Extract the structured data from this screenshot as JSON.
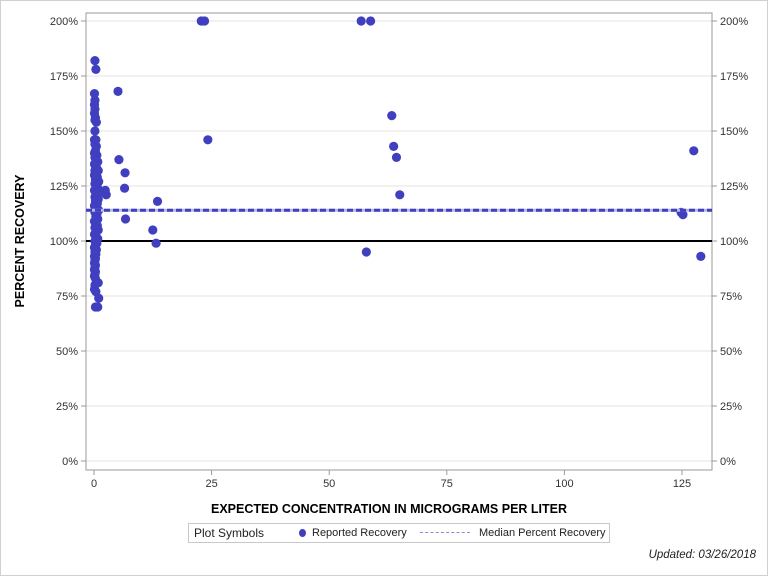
{
  "chart_data": {
    "type": "scatter",
    "title": "",
    "xlabel": "EXPECTED CONCENTRATION IN MICROGRAMS PER LITER",
    "ylabel": "PERCENT RECOVERY",
    "xlim": [
      -2,
      131
    ],
    "ylim": [
      -4,
      208
    ],
    "x_ticks": [
      0,
      25,
      50,
      75,
      100,
      125
    ],
    "x_tick_labels": [
      "0",
      "25",
      "50",
      "75",
      "100",
      "125"
    ],
    "y_ticks": [
      0,
      25,
      50,
      75,
      100,
      125,
      150,
      175,
      200
    ],
    "y_tick_labels": [
      "0%",
      "25%",
      "50%",
      "75%",
      "100%",
      "125%",
      "150%",
      "175%",
      "200%"
    ],
    "grid": "horizontal",
    "reference_line": {
      "y": 100,
      "color": "#000000",
      "style": "solid"
    },
    "median_line": {
      "y": 114,
      "color": "#3f3fc0",
      "style": "dashed",
      "name": "Median Percent Recovery"
    },
    "series": [
      {
        "name": "Reported Recovery",
        "color": "#3f3fc0",
        "points": [
          [
            0.2,
            182
          ],
          [
            0.4,
            178
          ],
          [
            0.1,
            167
          ],
          [
            0.2,
            164
          ],
          [
            0.1,
            162
          ],
          [
            0.2,
            160
          ],
          [
            0.1,
            158
          ],
          [
            0.3,
            156
          ],
          [
            0.2,
            155
          ],
          [
            0.5,
            154
          ],
          [
            0.2,
            150
          ],
          [
            0.1,
            146
          ],
          [
            0.4,
            146
          ],
          [
            0.2,
            144
          ],
          [
            0.5,
            143
          ],
          [
            0.3,
            141
          ],
          [
            0.1,
            140
          ],
          [
            0.6,
            139
          ],
          [
            0.2,
            138
          ],
          [
            0.4,
            137
          ],
          [
            0.8,
            136
          ],
          [
            0.1,
            135
          ],
          [
            0.3,
            134
          ],
          [
            0.6,
            133
          ],
          [
            0.2,
            132
          ],
          [
            0.9,
            132
          ],
          [
            0.5,
            131
          ],
          [
            0.1,
            130
          ],
          [
            0.7,
            129
          ],
          [
            0.3,
            128
          ],
          [
            1.0,
            127
          ],
          [
            0.2,
            126
          ],
          [
            0.5,
            125
          ],
          [
            0.8,
            124
          ],
          [
            0.1,
            123
          ],
          [
            1.1,
            123
          ],
          [
            0.4,
            122
          ],
          [
            0.6,
            121
          ],
          [
            0.2,
            120
          ],
          [
            0.9,
            119
          ],
          [
            0.3,
            118
          ],
          [
            0.7,
            117
          ],
          [
            0.1,
            116
          ],
          [
            0.5,
            115
          ],
          [
            1.0,
            114
          ],
          [
            0.2,
            113
          ],
          [
            0.6,
            112
          ],
          [
            0.4,
            111
          ],
          [
            0.8,
            110
          ],
          [
            0.1,
            109
          ],
          [
            0.3,
            108
          ],
          [
            0.7,
            107
          ],
          [
            0.2,
            106
          ],
          [
            0.9,
            105
          ],
          [
            0.5,
            104
          ],
          [
            0.1,
            103
          ],
          [
            0.4,
            102
          ],
          [
            0.8,
            101
          ],
          [
            0.2,
            100
          ],
          [
            0.6,
            99
          ],
          [
            0.3,
            98
          ],
          [
            0.1,
            97
          ],
          [
            0.5,
            96
          ],
          [
            0.2,
            95
          ],
          [
            0.4,
            94
          ],
          [
            0.1,
            93
          ],
          [
            0.3,
            92
          ],
          [
            0.2,
            91
          ],
          [
            0.1,
            90
          ],
          [
            0.3,
            89
          ],
          [
            0.2,
            88
          ],
          [
            0.1,
            87
          ],
          [
            0.3,
            86
          ],
          [
            0.2,
            85
          ],
          [
            0.1,
            84
          ],
          [
            0.3,
            83
          ],
          [
            0.9,
            81
          ],
          [
            0.2,
            80
          ],
          [
            0.1,
            78
          ],
          [
            0.4,
            77
          ],
          [
            1.0,
            74
          ],
          [
            0.3,
            70
          ],
          [
            0.8,
            70
          ],
          [
            2.4,
            123
          ],
          [
            2.6,
            121
          ],
          [
            2.2,
            122
          ],
          [
            5.1,
            168
          ],
          [
            5.3,
            137
          ],
          [
            6.6,
            131
          ],
          [
            6.5,
            124
          ],
          [
            6.7,
            110
          ],
          [
            12.5,
            105
          ],
          [
            13.5,
            118
          ],
          [
            13.2,
            99
          ],
          [
            22.8,
            200
          ],
          [
            23.5,
            200
          ],
          [
            24.2,
            146
          ],
          [
            56.8,
            200
          ],
          [
            58.8,
            200
          ],
          [
            57.9,
            95
          ],
          [
            63.3,
            157
          ],
          [
            63.7,
            143
          ],
          [
            64.3,
            138
          ],
          [
            65.0,
            121
          ],
          [
            124.8,
            113
          ],
          [
            125.2,
            112
          ],
          [
            127.5,
            141
          ],
          [
            129.0,
            93
          ]
        ]
      }
    ],
    "legend": {
      "position": "bottom",
      "title": "Plot Symbols",
      "entries": [
        "Reported Recovery",
        "Median Percent Recovery"
      ]
    },
    "annotations": [
      "Updated: 03/26/2018"
    ]
  },
  "legend": {
    "title": "Plot Symbols",
    "entry1": "Reported Recovery",
    "entry2": "Median Percent Recovery"
  },
  "footer": {
    "updated": "Updated: 03/26/2018"
  }
}
